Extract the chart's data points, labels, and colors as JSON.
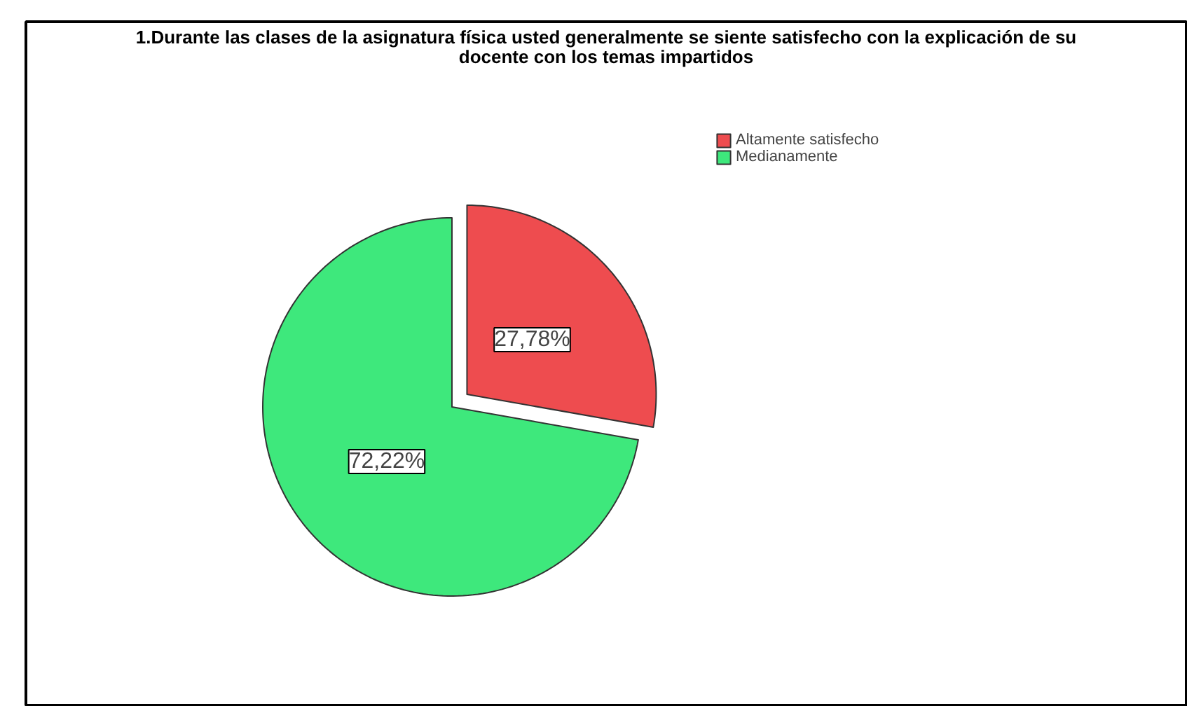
{
  "chart_data": {
    "type": "pie",
    "title": "1.Durante las clases de la asignatura física usted generalmente se siente satisfecho con la explicación de su docente con los temas impartidos",
    "categories": [
      "Altamente satisfecho",
      "Medianamente"
    ],
    "values": [
      27.78,
      72.22
    ],
    "colors": [
      "#ee4c4f",
      "#3ee87c"
    ],
    "value_labels": [
      "27,78%",
      "72,22%"
    ],
    "legend": "top right"
  }
}
